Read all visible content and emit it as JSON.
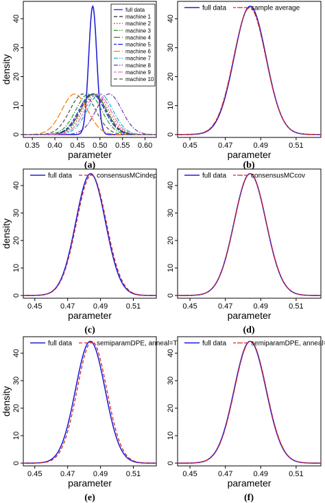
{
  "figure": {
    "panels": [
      "(a)",
      "(b)",
      "(c)",
      "(d)",
      "(e)",
      "(f)"
    ]
  },
  "chart_data": [
    {
      "panel": "(a)",
      "type": "line",
      "xlabel": "parameter",
      "ylabel": "density",
      "xlim": [
        0.33,
        0.625
      ],
      "ylim": [
        -1,
        46
      ],
      "xticks": [
        "0.35",
        "0.40",
        "0.45",
        "0.50",
        "0.55",
        "0.60"
      ],
      "xtick_values": [
        0.35,
        0.4,
        0.45,
        0.5,
        0.55,
        0.6
      ],
      "yticks": [
        "0",
        "10",
        "20",
        "30",
        "40"
      ],
      "ytick_values": [
        0,
        10,
        20,
        30,
        40
      ],
      "legend": "top-right",
      "series": [
        {
          "name": "full data",
          "mean": 0.484,
          "sd": 0.009,
          "color": "#1f1fd8",
          "dash": "solid"
        },
        {
          "name": "machine 1",
          "mean": 0.485,
          "sd": 0.0285,
          "color": "#222222",
          "dash": "dash"
        },
        {
          "name": "machine 2",
          "mean": 0.49,
          "sd": 0.0285,
          "color": "#d92020",
          "dash": "dot"
        },
        {
          "name": "machine 3",
          "mean": 0.475,
          "sd": 0.0285,
          "color": "#2ca02c",
          "dash": "dashdot"
        },
        {
          "name": "machine 4",
          "mean": 0.486,
          "sd": 0.0285,
          "color": "#2e7d32",
          "dash": "longdash"
        },
        {
          "name": "machine 5",
          "mean": 0.482,
          "sd": 0.0285,
          "color": "#1f1fd8",
          "dash": "twodash"
        },
        {
          "name": "machine 6",
          "mean": 0.444,
          "sd": 0.0285,
          "color": "#ff7f0e",
          "dash": "longdash"
        },
        {
          "name": "machine 7",
          "mean": 0.5,
          "sd": 0.0285,
          "color": "#17becf",
          "dash": "dashdot"
        },
        {
          "name": "machine 8",
          "mean": 0.52,
          "sd": 0.0285,
          "color": "#7b3fbf",
          "dash": "dashdot"
        },
        {
          "name": "machine 9",
          "mean": 0.495,
          "sd": 0.0285,
          "color": "#e377c2",
          "dash": "twodash"
        },
        {
          "name": "machine 10",
          "mean": 0.462,
          "sd": 0.0285,
          "color": "#555555",
          "dash": "dash"
        }
      ]
    },
    {
      "panel": "(b)",
      "type": "line",
      "xlabel": "parameter",
      "ylabel": "",
      "xlim": [
        0.443,
        0.524
      ],
      "ylim": [
        -1,
        46
      ],
      "xticks": [
        "0.45",
        "0.47",
        "0.49",
        "0.51"
      ],
      "xtick_values": [
        0.45,
        0.47,
        0.49,
        0.51
      ],
      "yticks": [
        "0",
        "10",
        "20",
        "30",
        "40"
      ],
      "ytick_values": [
        0,
        10,
        20,
        30,
        40
      ],
      "legend": "top",
      "series": [
        {
          "name": "full data",
          "mean": 0.484,
          "sd": 0.009,
          "color": "#1f1fd8",
          "dash": "solid"
        },
        {
          "name": "sample average",
          "mean": 0.4838,
          "sd": 0.0091,
          "color": "#d92020",
          "dash": "twodash"
        }
      ]
    },
    {
      "panel": "(c)",
      "type": "line",
      "xlabel": "parameter",
      "ylabel": "density",
      "xlim": [
        0.443,
        0.524
      ],
      "ylim": [
        -1,
        46
      ],
      "xticks": [
        "0.45",
        "0.47",
        "0.49",
        "0.51"
      ],
      "xtick_values": [
        0.45,
        0.47,
        0.49,
        0.51
      ],
      "yticks": [
        "0",
        "10",
        "20",
        "30",
        "40"
      ],
      "ytick_values": [
        0,
        10,
        20,
        30,
        40
      ],
      "legend": "top",
      "series": [
        {
          "name": "full data",
          "mean": 0.484,
          "sd": 0.009,
          "color": "#1f1fd8",
          "dash": "solid"
        },
        {
          "name": "consensusMCindep",
          "mean": 0.4845,
          "sd": 0.0091,
          "color": "#d92020",
          "dash": "dash"
        }
      ]
    },
    {
      "panel": "(d)",
      "type": "line",
      "xlabel": "parameter",
      "ylabel": "",
      "xlim": [
        0.443,
        0.524
      ],
      "ylim": [
        -1,
        46
      ],
      "xticks": [
        "0.45",
        "0.47",
        "0.49",
        "0.51"
      ],
      "xtick_values": [
        0.45,
        0.47,
        0.49,
        0.51
      ],
      "yticks": [
        "0",
        "10",
        "20",
        "30",
        "40"
      ],
      "ytick_values": [
        0,
        10,
        20,
        30,
        40
      ],
      "legend": "top",
      "series": [
        {
          "name": "full data",
          "mean": 0.484,
          "sd": 0.009,
          "color": "#1f1fd8",
          "dash": "solid"
        },
        {
          "name": "consensusMCcov",
          "mean": 0.4841,
          "sd": 0.009,
          "color": "#d92020",
          "dash": "twodash"
        }
      ]
    },
    {
      "panel": "(e)",
      "type": "line",
      "xlabel": "parameter",
      "ylabel": "density",
      "xlim": [
        0.443,
        0.524
      ],
      "ylim": [
        -1,
        46
      ],
      "xticks": [
        "0.45",
        "0.47",
        "0.49",
        "0.51"
      ],
      "xtick_values": [
        0.45,
        0.47,
        0.49,
        0.51
      ],
      "yticks": [
        "0",
        "10",
        "20",
        "30",
        "40"
      ],
      "ytick_values": [
        0,
        10,
        20,
        30,
        40
      ],
      "legend": "top",
      "series": [
        {
          "name": "full data",
          "mean": 0.4838,
          "sd": 0.009,
          "color": "#1f1fd8",
          "dash": "solid"
        },
        {
          "name": "semiparamDPE, anneal=T",
          "mean": 0.4848,
          "sd": 0.009,
          "color": "#d92020",
          "dash": "dash"
        }
      ]
    },
    {
      "panel": "(f)",
      "type": "line",
      "xlabel": "parameter",
      "ylabel": "",
      "xlim": [
        0.443,
        0.524
      ],
      "ylim": [
        -1,
        46
      ],
      "xticks": [
        "0.45",
        "0.47",
        "0.49",
        "0.51"
      ],
      "xtick_values": [
        0.45,
        0.47,
        0.49,
        0.51
      ],
      "yticks": [
        "0",
        "10",
        "20",
        "30",
        "40"
      ],
      "ytick_values": [
        0,
        10,
        20,
        30,
        40
      ],
      "legend": "top",
      "series": [
        {
          "name": "full data",
          "mean": 0.484,
          "sd": 0.009,
          "color": "#1f1fd8",
          "dash": "solid"
        },
        {
          "name": "semiparamDPE, anneal=F",
          "mean": 0.4842,
          "sd": 0.009,
          "color": "#d92020",
          "dash": "twodash"
        }
      ]
    }
  ]
}
